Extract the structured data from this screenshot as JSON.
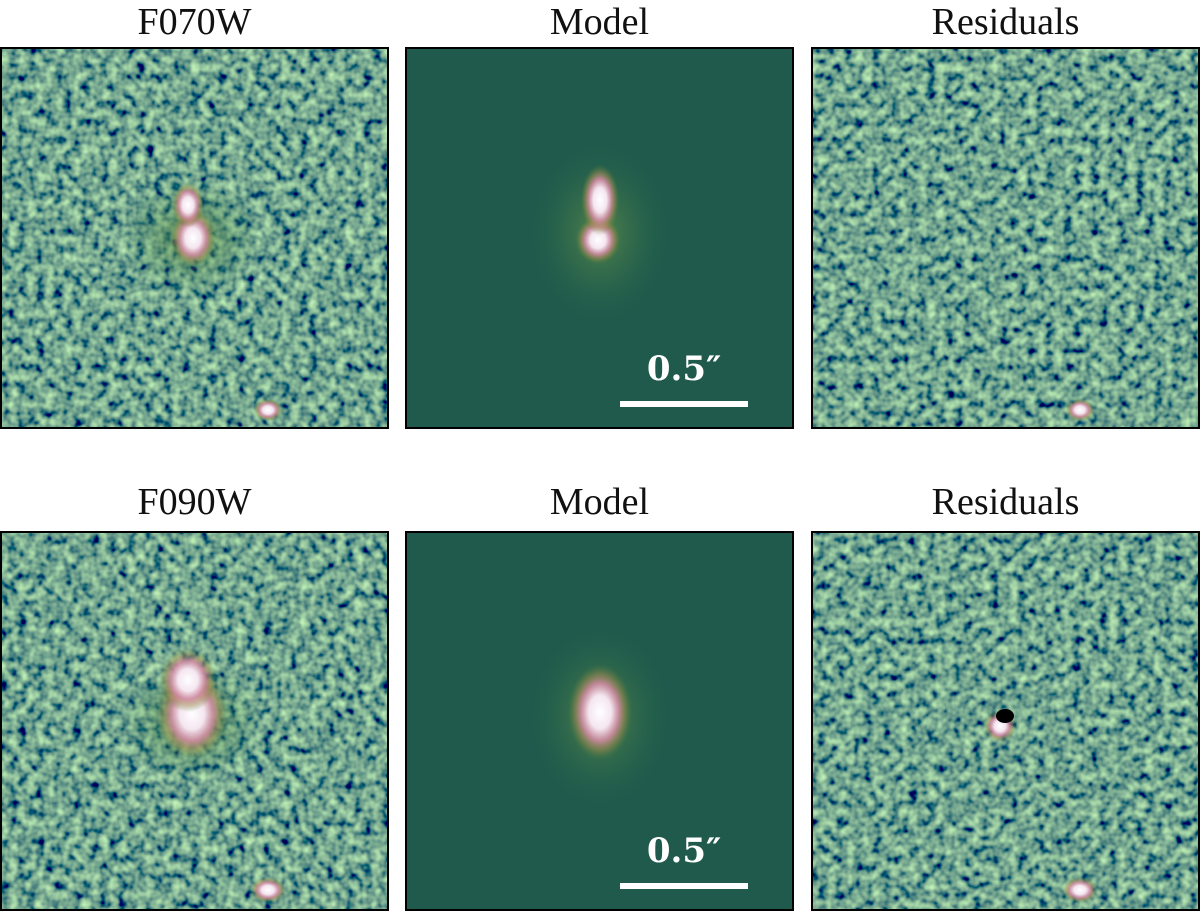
{
  "rows": [
    {
      "panels": [
        {
          "title": "F070W"
        },
        {
          "title": "Model",
          "scale_bar": "0.5″"
        },
        {
          "title": "Residuals"
        }
      ]
    },
    {
      "panels": [
        {
          "title": "F090W"
        },
        {
          "title": "Model",
          "scale_bar": "0.5″"
        },
        {
          "title": "Residuals"
        }
      ]
    }
  ]
}
